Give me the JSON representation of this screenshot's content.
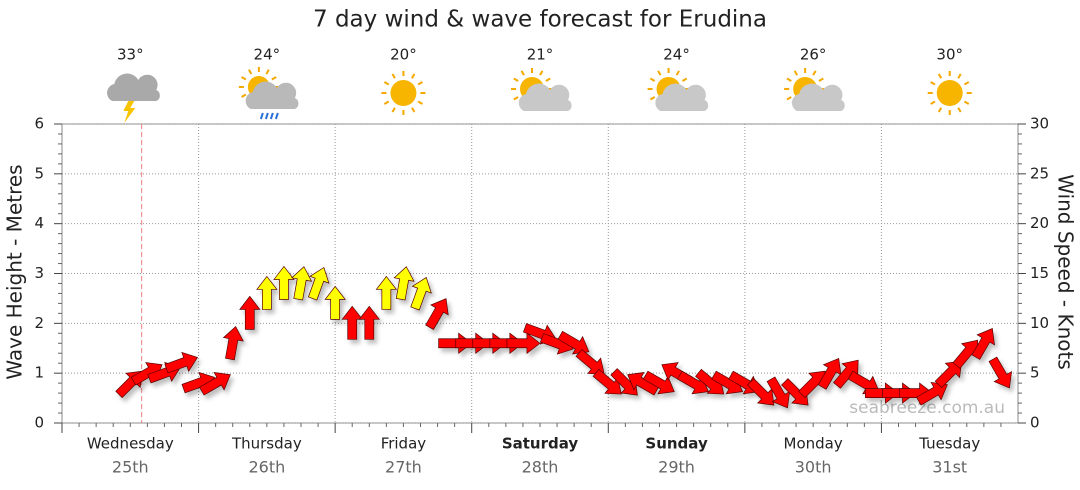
{
  "chart_data": {
    "type": "wind-arrows",
    "title": "7 day wind & wave forecast for Erudina",
    "y_label": "Wave Height - Metres",
    "y2_label": "Wind Speed - Knots",
    "watermark": "seabreeze.com.au",
    "categories": [
      "Wednesday",
      "Thursday",
      "Friday",
      "Saturday",
      "Sunday",
      "Monday",
      "Tuesday"
    ],
    "dates": [
      "25th",
      "26th",
      "27th",
      "28th",
      "29th",
      "30th",
      "31st"
    ],
    "bold": [
      false,
      false,
      false,
      true,
      true,
      false,
      false
    ],
    "temperatures": [
      "33°",
      "24°",
      "20°",
      "21°",
      "24°",
      "26°",
      "30°"
    ],
    "icons": [
      "storm",
      "showers",
      "sun",
      "partly-cloudy",
      "partly-cloudy",
      "partly-cloudy",
      "sun"
    ],
    "now_marker": 14,
    "xlim": [
      0,
      168
    ],
    "ylim": [
      0,
      6
    ],
    "yticks": [
      0,
      1,
      2,
      3,
      4,
      5,
      6
    ],
    "y2lim": [
      0,
      30
    ],
    "y2ticks": [
      0,
      5,
      10,
      15,
      20,
      25,
      30
    ],
    "grid": true,
    "series": [
      {
        "name": "Wind",
        "axis": "y2",
        "color": "#ff0000",
        "strong_color": "#ffff00",
        "strong_threshold": 12,
        "x": [
          12,
          15,
          18,
          21,
          24,
          27,
          30,
          33,
          36,
          39,
          42,
          45,
          48,
          51,
          54,
          57,
          60,
          63,
          66,
          69,
          72,
          75,
          78,
          81,
          84,
          87,
          90,
          93,
          96,
          99,
          102,
          105,
          108,
          111,
          114,
          117,
          120,
          123,
          126,
          129,
          132,
          135,
          138,
          141,
          144,
          147,
          150,
          153,
          156,
          159,
          162,
          165
        ],
        "values": [
          4,
          5,
          5,
          6,
          4,
          4,
          8,
          11,
          13,
          14,
          14,
          14,
          12,
          10,
          10,
          13,
          14,
          13,
          11,
          8,
          8,
          8,
          8,
          8,
          9,
          8,
          8,
          6,
          4,
          4,
          4,
          4,
          5,
          4,
          4,
          4,
          4,
          3,
          3,
          3,
          4,
          5,
          5,
          4,
          3,
          3,
          3,
          3,
          5,
          7,
          8,
          5
        ],
        "directions": [
          45,
          60,
          70,
          70,
          70,
          60,
          10,
          0,
          0,
          0,
          10,
          20,
          0,
          0,
          0,
          0,
          10,
          20,
          30,
          90,
          90,
          90,
          90,
          90,
          110,
          110,
          120,
          130,
          130,
          135,
          300,
          120,
          300,
          120,
          130,
          120,
          120,
          135,
          150,
          135,
          45,
          30,
          40,
          120,
          90,
          90,
          90,
          60,
          45,
          40,
          30,
          150
        ]
      }
    ]
  }
}
